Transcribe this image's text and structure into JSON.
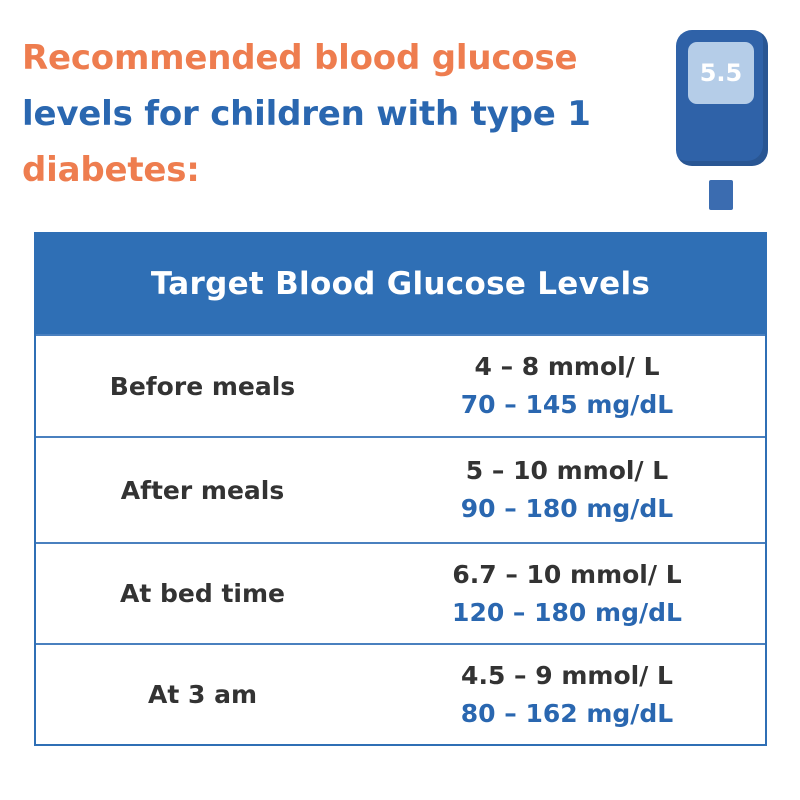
{
  "title": {
    "line1": "Recommended blood glucose",
    "line2": "levels for children with type 1",
    "line3": "diabetes:"
  },
  "meter": {
    "display": "5.5",
    "body_color": "#2f62a8",
    "screen_color": "#b5cde8"
  },
  "colors": {
    "title_orange": "#ee7d4f",
    "accent_blue": "#2a67b0",
    "header_blue": "#2f6fb5",
    "text_dark": "#333333"
  },
  "table": {
    "header": "Target Blood Glucose Levels",
    "rows": [
      {
        "label": "Before meals",
        "mmol": "4 – 8 mmol/ L",
        "mgdl": "70 – 145 mg/dL"
      },
      {
        "label": "After meals",
        "mmol": "5 – 10 mmol/ L",
        "mgdl": "90 – 180 mg/dL"
      },
      {
        "label": "At bed time",
        "mmol": "6.7 – 10 mmol/ L",
        "mgdl": "120 – 180 mg/dL"
      },
      {
        "label": "At 3 am",
        "mmol": "4.5 – 9 mmol/ L",
        "mgdl": "80 – 162 mg/dL"
      }
    ]
  }
}
